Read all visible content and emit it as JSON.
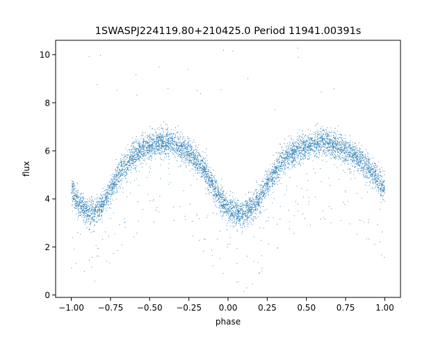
{
  "chart_data": {
    "type": "scatter",
    "title": "1SWASPJ224119.80+210425.0 Period 11941.00391s",
    "xlabel": "phase",
    "ylabel": "flux",
    "xlim": [
      -1.1,
      1.1
    ],
    "ylim": [
      -0.1,
      10.6
    ],
    "xticks": [
      -1.0,
      -0.75,
      -0.5,
      -0.25,
      0.0,
      0.25,
      0.5,
      0.75,
      1.0
    ],
    "xtick_labels": [
      "−1.00",
      "−0.75",
      "−0.50",
      "−0.25",
      "0.00",
      "0.25",
      "0.50",
      "0.75",
      "1.00"
    ],
    "yticks": [
      0,
      2,
      4,
      6,
      8,
      10
    ],
    "ytick_labels": [
      "0",
      "2",
      "4",
      "6",
      "8",
      "10"
    ],
    "grid": false,
    "legend": "none",
    "marker_color": "#1f77b4",
    "series": [
      {
        "x": [
          -1.0,
          -0.95,
          -0.9,
          -0.85,
          -0.8,
          -0.75,
          -0.7,
          -0.65,
          -0.6,
          -0.55,
          -0.5,
          -0.45,
          -0.4,
          -0.35,
          -0.3,
          -0.25,
          -0.2,
          -0.15,
          -0.1,
          -0.05,
          0.0,
          0.05,
          0.1,
          0.15,
          0.2,
          0.25,
          0.3,
          0.35,
          0.4,
          0.45,
          0.5,
          0.55,
          0.6,
          0.65,
          0.7,
          0.75,
          0.8,
          0.85,
          0.9,
          0.95,
          1.0
        ],
        "y": [
          4.4,
          3.8,
          3.4,
          3.45,
          3.8,
          4.4,
          5.0,
          5.45,
          5.8,
          6.05,
          6.2,
          6.3,
          6.35,
          6.3,
          6.15,
          5.95,
          5.6,
          5.15,
          4.6,
          4.0,
          3.55,
          3.4,
          3.4,
          3.6,
          4.0,
          4.6,
          5.15,
          5.55,
          5.85,
          6.05,
          6.2,
          6.3,
          6.35,
          6.3,
          6.2,
          6.0,
          5.8,
          5.55,
          5.25,
          4.85,
          4.4
        ]
      }
    ]
  }
}
